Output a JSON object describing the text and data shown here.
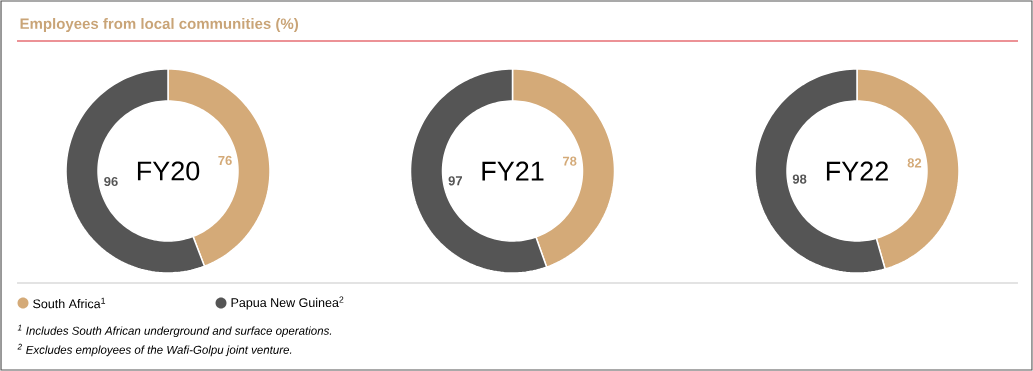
{
  "chart_data": [
    {
      "type": "other",
      "title": "Employees from local communities (%)",
      "annotations": [
        "$^{1}$ Includes South African underground and surface operations.",
        "$^{2}$ Excludes employees of the Wafi-Golpu joint venture."
      ]
    },
    {
      "type": "donut",
      "title": "FY20",
      "categories": [
        "South Africa$^{1}$",
        "Papua New Guinea$^{2}$"
      ],
      "values": [
        76,
        96
      ],
      "colors": [
        "#d4aa78",
        "#555555"
      ],
      "data_labels": true,
      "legend": "bottom"
    },
    {
      "type": "donut",
      "title": "FY21",
      "categories": [
        null,
        null
      ],
      "values": [
        78,
        97
      ],
      "colors": [
        "#d4aa78",
        "#555555"
      ],
      "data_labels": true
    },
    {
      "type": "donut",
      "title": "FY22",
      "categories": [
        null,
        null
      ],
      "values": [
        82,
        98
      ],
      "colors": [
        "#d4aa78",
        "#555555"
      ],
      "data_labels": true
    }
  ]
}
